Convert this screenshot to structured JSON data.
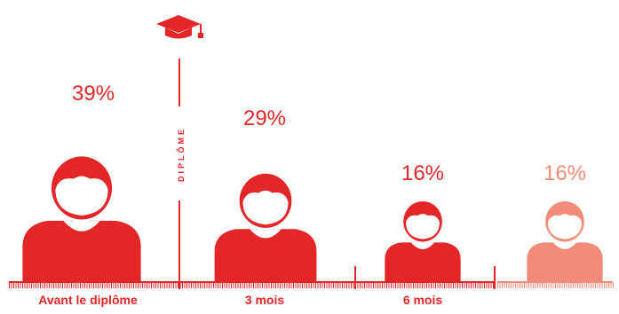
{
  "colors": {
    "primary": "#e32627",
    "faded": "#f28b77",
    "graduate_icon": "#e32627"
  },
  "divider": {
    "label": "DIPLÔME",
    "icon": "graduation-cap-icon"
  },
  "chart_data": {
    "type": "bar",
    "categories": [
      "Avant le diplôme",
      "3 mois",
      "6 mois",
      ""
    ],
    "values": [
      39,
      29,
      16,
      16
    ],
    "value_labels": [
      "39%",
      "29%",
      "16%",
      "16%"
    ],
    "value_suffix": "%",
    "mark": "person-pictogram",
    "highlight": [
      false,
      false,
      false,
      true
    ],
    "title": "",
    "xlabel": "",
    "ylabel": "",
    "ylim": [
      0,
      39
    ],
    "grid": false,
    "legend": "none"
  }
}
